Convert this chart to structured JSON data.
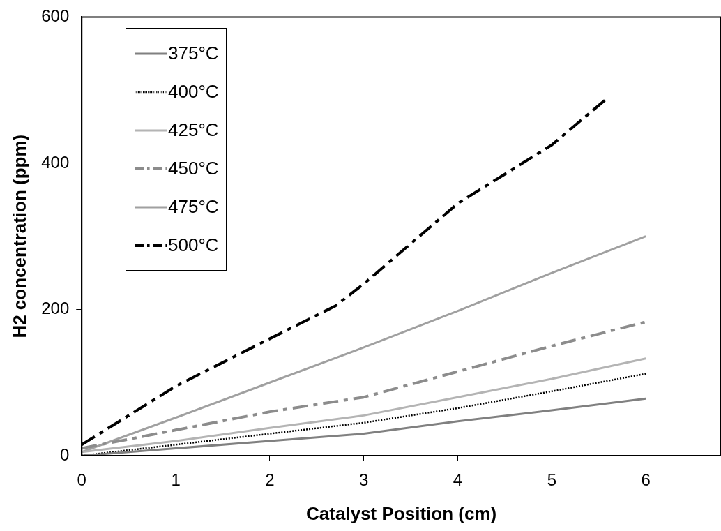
{
  "chart_data": {
    "type": "line",
    "xlabel": "Catalyst Position (cm)",
    "ylabel": "H2 concentration (ppm)",
    "xlim": [
      0,
      6.8
    ],
    "xticks": [
      0,
      1,
      2,
      3,
      4,
      5,
      6
    ],
    "ylim": [
      0,
      600
    ],
    "yticks": [
      0,
      200,
      400,
      600
    ],
    "grid": false,
    "legend": "top left",
    "marker": "none",
    "series": [
      {
        "name": "375°C",
        "color": "#808080",
        "line_style": "solid",
        "x": [
          0,
          1,
          2,
          3,
          4,
          5,
          6
        ],
        "values": [
          0,
          10,
          20,
          30,
          47,
          62,
          78
        ]
      },
      {
        "name": "400°C",
        "color": "#000000",
        "line_style": "dotted",
        "x": [
          0,
          1,
          2,
          3,
          4,
          5,
          6
        ],
        "values": [
          0,
          15,
          30,
          45,
          65,
          88,
          112
        ]
      },
      {
        "name": "425°C",
        "color": "#b4b4b4",
        "line_style": "solid",
        "x": [
          0,
          1,
          2,
          3,
          4,
          5,
          6
        ],
        "values": [
          5,
          20,
          38,
          55,
          80,
          105,
          133
        ]
      },
      {
        "name": "450°C",
        "color": "#8c8c8c",
        "line_style": "dashed",
        "x": [
          0,
          1,
          2,
          3,
          4,
          5,
          6
        ],
        "values": [
          10,
          35,
          60,
          80,
          115,
          150,
          183
        ]
      },
      {
        "name": "475°C",
        "color": "#a0a0a0",
        "line_style": "solid",
        "x": [
          0,
          1,
          2,
          3,
          4,
          5,
          6
        ],
        "values": [
          5,
          52,
          100,
          148,
          198,
          250,
          300
        ]
      },
      {
        "name": "500°C",
        "color": "#000000",
        "line_style": "dashed",
        "x": [
          0,
          1,
          2,
          2.7,
          3,
          4,
          5,
          5.6
        ],
        "values": [
          15,
          95,
          160,
          205,
          235,
          345,
          425,
          490
        ]
      }
    ]
  }
}
